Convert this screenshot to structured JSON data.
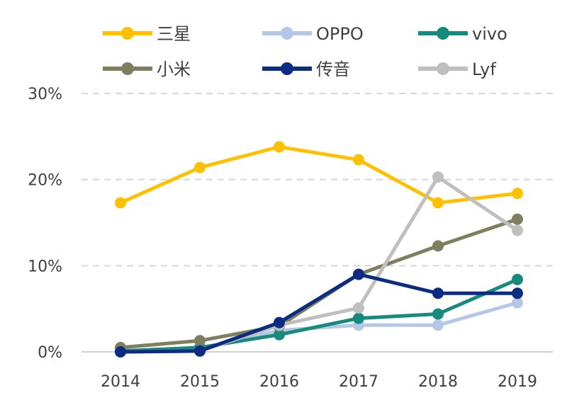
{
  "chart_data": {
    "type": "line",
    "title": "",
    "xlabel": "",
    "ylabel": "",
    "x": [
      "2014",
      "2015",
      "2016",
      "2017",
      "2018",
      "2019"
    ],
    "ylim": [
      0,
      30
    ],
    "yticks": [
      "0%",
      "10%",
      "20%",
      "30%"
    ],
    "ytick_values": [
      0,
      10,
      20,
      30
    ],
    "grid": "horizontal dashed",
    "legend_position": "top",
    "series": [
      {
        "name": "三星",
        "color": "#FFC000",
        "values": [
          17.3,
          21.4,
          23.8,
          22.3,
          17.3,
          18.4
        ]
      },
      {
        "name": "OPPO",
        "color": "#B4C7E7",
        "values": [
          0.1,
          0.3,
          2.5,
          3.1,
          3.1,
          5.7
        ]
      },
      {
        "name": "vivo",
        "color": "#168A7E",
        "values": [
          0.1,
          0.5,
          2.0,
          3.9,
          4.4,
          8.4
        ]
      },
      {
        "name": "小米",
        "color": "#7F7F5F",
        "values": [
          0.5,
          1.3,
          3.0,
          9.0,
          12.3,
          15.4
        ]
      },
      {
        "name": "传音",
        "color": "#0B2C82",
        "values": [
          0.0,
          0.1,
          3.4,
          9.0,
          6.8,
          6.8
        ]
      },
      {
        "name": "Lyf",
        "color": "#BFBFBF",
        "values": [
          0.0,
          0.1,
          3.1,
          5.1,
          20.3,
          14.1
        ]
      }
    ]
  }
}
